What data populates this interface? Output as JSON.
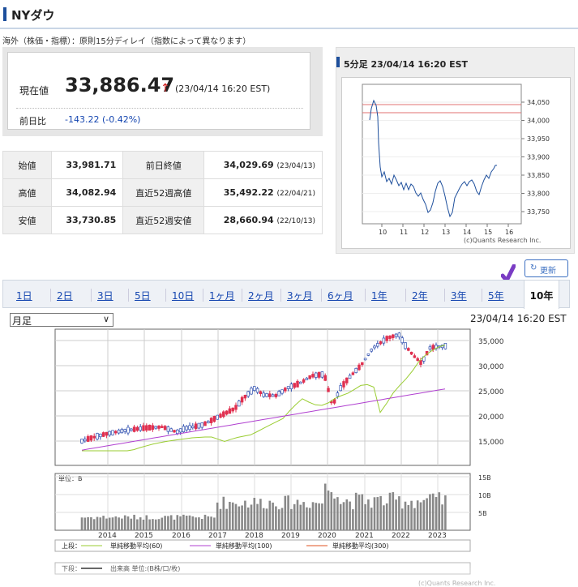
{
  "header": {
    "title": "NYダウ"
  },
  "notice": "海外（株価・指標）：原則15分ディレイ（指数によって異なります）",
  "quote": {
    "price_label": "現在値",
    "price": "33,886.47",
    "arrow": "↑",
    "time": "(23/04/14 16:20 EST)",
    "diff_label": "前日比",
    "diff": "-143.22 (-0.42%)"
  },
  "stats": {
    "rows": [
      {
        "l1": "始値",
        "v1": "33,981.71",
        "l2": "前日終値",
        "v2": "34,029.69",
        "d2": "(23/04/13)"
      },
      {
        "l1": "高値",
        "v1": "34,082.94",
        "l2": "直近52週高値",
        "v2": "35,492.22",
        "d2": "(22/04/21)"
      },
      {
        "l1": "安値",
        "v1": "33,730.85",
        "l2": "直近52週安値",
        "v2": "28,660.94",
        "d2": "(22/10/13)"
      }
    ]
  },
  "mini_chart": {
    "title": "5分足 23/04/14 16:20 EST",
    "credit": "(c)Quants Research Inc.",
    "y_ticks": [
      "34,050",
      "34,000",
      "33,950",
      "33,900",
      "33,850",
      "33,800",
      "33,750"
    ],
    "x_ticks": [
      "10",
      "11",
      "12",
      "13",
      "14",
      "15",
      "16"
    ]
  },
  "refresh_label": "更新",
  "tabs": [
    {
      "label": "1日"
    },
    {
      "label": "2日"
    },
    {
      "label": "3日"
    },
    {
      "label": "5日"
    },
    {
      "label": "10日"
    },
    {
      "label": "1ヶ月"
    },
    {
      "label": "2ヶ月"
    },
    {
      "label": "3ヶ月"
    },
    {
      "label": "6ヶ月"
    },
    {
      "label": "1年"
    },
    {
      "label": "2年"
    },
    {
      "label": "3年"
    },
    {
      "label": "5年"
    },
    {
      "label": "10年"
    }
  ],
  "active_tab": "10年",
  "period_select": {
    "value": "月足"
  },
  "big_chart": {
    "time": "23/04/14 16:20 EST",
    "y_ticks": [
      "35,000",
      "30,000",
      "25,000",
      "20,000",
      "15,000"
    ],
    "vol_ticks": [
      "15B",
      "10B",
      "5B"
    ],
    "vol_unit": "単位：B",
    "x_ticks": [
      "2014",
      "2015",
      "2016",
      "2017",
      "2018",
      "2019",
      "2020",
      "2021",
      "2022",
      "2023"
    ],
    "legend_top_label": "上段：",
    "legend_top": [
      "単純移動平均(60)",
      "単純移動平均(100)",
      "単純移動平均(300)"
    ],
    "legend_bottom_label": "下段：",
    "legend_bottom": "出来高 単位:(B株/口/枚)",
    "credit": "(c)Quants Research Inc.",
    "colors": {
      "ma60": "#9acd32",
      "ma100": "#b040d0",
      "ma300": "#e05020",
      "up": "#ffffff",
      "down": "#e03050",
      "up_border": "#3050b0"
    }
  }
}
